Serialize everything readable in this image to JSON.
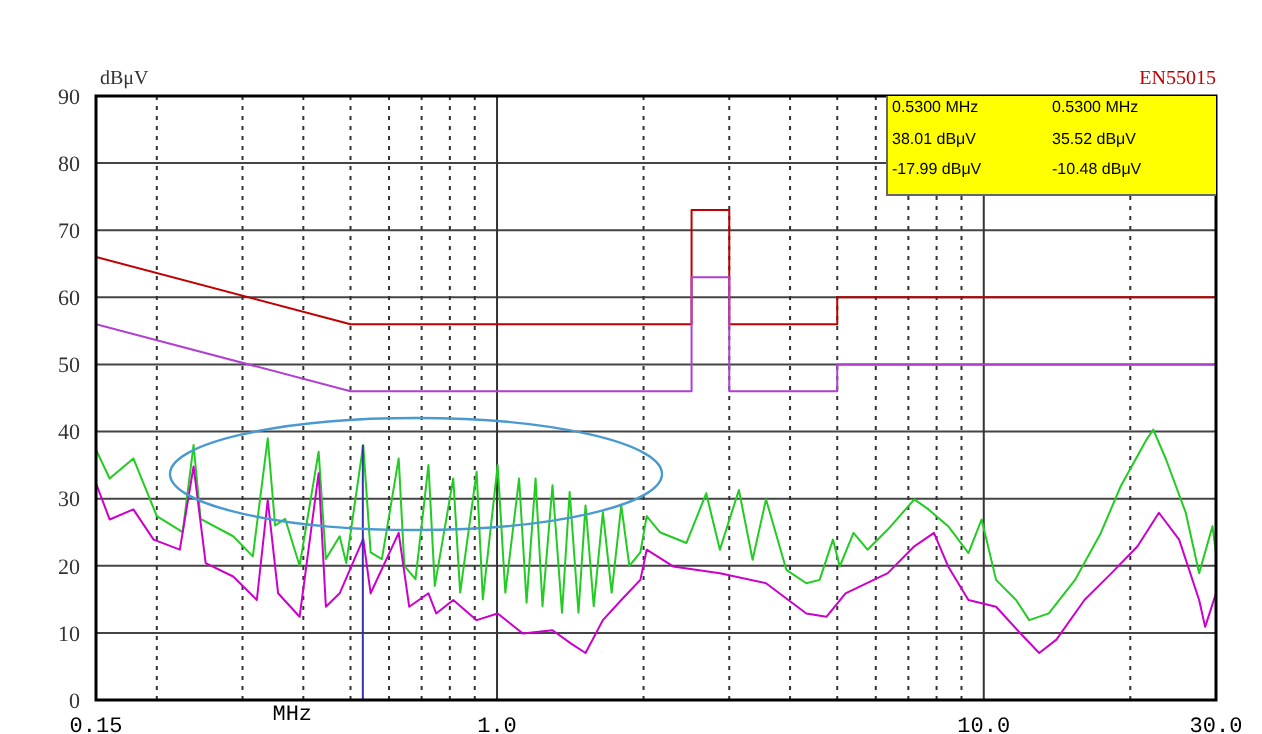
{
  "chart_data": {
    "type": "line",
    "ylabel": "dBμV",
    "xlabel": "MHz",
    "log": "x",
    "grid": true,
    "xlim": [
      0.15,
      30
    ],
    "xticks": [
      0.15,
      {
        "value": 0.2,
        "label": null
      },
      {
        "value": 0.3,
        "label": null
      },
      {
        "value": 0.4,
        "label": null
      },
      {
        "value": 0.5,
        "label": null
      },
      {
        "value": 0.6,
        "label": null
      },
      {
        "value": 0.7,
        "label": null
      },
      {
        "value": 0.8,
        "label": null
      },
      {
        "value": 0.9,
        "label": null
      },
      {
        "value": 1,
        "label": "1.0"
      },
      {
        "value": 2,
        "label": null
      },
      {
        "value": 3,
        "label": null
      },
      {
        "value": 4,
        "label": null
      },
      {
        "value": 5,
        "label": null
      },
      {
        "value": 6,
        "label": null
      },
      {
        "value": 7,
        "label": null
      },
      {
        "value": 8,
        "label": null
      },
      {
        "value": 9,
        "label": null
      },
      {
        "value": 10,
        "label": "10.0"
      },
      {
        "value": 20,
        "label": null
      },
      {
        "value": 30,
        "label": "30.0"
      }
    ],
    "ylim": [
      0,
      90
    ],
    "yticks": [
      0,
      10,
      20,
      30,
      40,
      50,
      60,
      70,
      80,
      90
    ],
    "annotations": [
      "EN55015",
      "0.5300 MHz",
      "38.01 dBμV",
      "-17.99 dBμV",
      "0.5300 MHz",
      "35.52 dBμV",
      "-10.48 dBμV"
    ],
    "series": [
      {
        "color": "#c00000",
        "x": [
          0.15,
          0.5,
          2.51,
          2.51,
          3,
          3,
          5,
          5,
          30
        ],
        "values": [
          66,
          56,
          56,
          73,
          73,
          56,
          56,
          60,
          60
        ]
      },
      {
        "color": "#b040d0",
        "x": [
          0.15,
          0.5,
          2.51,
          2.51,
          3,
          3,
          5,
          5,
          30
        ],
        "values": [
          56,
          46,
          46,
          63,
          63,
          46,
          46,
          50,
          50
        ]
      },
      {
        "color": "#22cc22",
        "x": [
          0.15,
          0.16,
          0.179,
          0.2,
          0.226,
          0.238,
          0.246,
          0.287,
          0.315,
          0.338,
          0.35,
          0.367,
          0.393,
          0.43,
          0.445,
          0.475,
          0.49,
          0.531,
          0.55,
          0.58,
          0.628,
          0.645,
          0.68,
          0.723,
          0.745,
          0.813,
          0.84,
          0.908,
          0.935,
          1.003,
          1.04,
          1.11,
          1.15,
          1.2,
          1.24,
          1.3,
          1.36,
          1.41,
          1.47,
          1.52,
          1.58,
          1.65,
          1.72,
          1.8,
          1.87,
          1.97,
          2.03,
          2.16,
          2.45,
          2.69,
          2.87,
          3.14,
          3.35,
          3.57,
          3.93,
          4.32,
          4.6,
          4.9,
          5.06,
          5.4,
          5.77,
          6.35,
          7.2,
          7.7,
          8.45,
          9.3,
          9.9,
          10.6,
          11.65,
          12.4,
          13.6,
          15.4,
          17.4,
          19.1,
          21.6,
          22.3,
          23.7,
          26,
          27.7,
          29.5,
          30
        ],
        "values": [
          37.3,
          33,
          36,
          27.4,
          25,
          38,
          27,
          24.4,
          21.4,
          39,
          26,
          27,
          20,
          37,
          21,
          24.4,
          20.4,
          38,
          22,
          21,
          36,
          20,
          18,
          35,
          17,
          33,
          16,
          34,
          15,
          35,
          16,
          33,
          14.5,
          33,
          14,
          32,
          13,
          31,
          13,
          29,
          14,
          28,
          16,
          29,
          20,
          22,
          27.4,
          25,
          23.4,
          30.8,
          22.4,
          31.3,
          20.9,
          29.9,
          19.4,
          17.4,
          17.9,
          23.9,
          19.9,
          24.9,
          22.4,
          25.4,
          29.9,
          28.4,
          25.9,
          21.9,
          26.9,
          17.9,
          14.9,
          11.9,
          12.9,
          17.9,
          24.9,
          31.8,
          38.8,
          40.3,
          35.8,
          27.9,
          18.9,
          25.9,
          21.9
        ]
      },
      {
        "color": "#cc00cc",
        "x": [
          0.15,
          0.16,
          0.179,
          0.197,
          0.223,
          0.238,
          0.252,
          0.287,
          0.321,
          0.338,
          0.355,
          0.393,
          0.43,
          0.445,
          0.475,
          0.531,
          0.55,
          0.628,
          0.66,
          0.723,
          0.75,
          0.813,
          0.908,
          1.003,
          1.13,
          1.3,
          1.42,
          1.52,
          1.65,
          1.8,
          1.97,
          2.03,
          2.3,
          2.87,
          3.57,
          4.32,
          4.75,
          5.2,
          6.35,
          7.2,
          7.9,
          8.45,
          9.3,
          10.6,
          11.9,
          13,
          14.1,
          16.1,
          18.3,
          20.7,
          22.9,
          25.2,
          27.7,
          28.5,
          30
        ],
        "values": [
          32.3,
          26.9,
          28.4,
          23.9,
          22.4,
          34.8,
          20.4,
          18.4,
          14.9,
          29.8,
          15.9,
          12.4,
          33.8,
          13.9,
          15.9,
          24,
          15.9,
          24.9,
          13.9,
          15.9,
          12.9,
          14.9,
          11.9,
          12.9,
          9.9,
          10.4,
          8.4,
          7,
          11.9,
          14.9,
          17.9,
          22.4,
          19.9,
          18.9,
          17.4,
          12.9,
          12.4,
          15.9,
          18.9,
          22.9,
          24.9,
          19.9,
          14.9,
          13.9,
          9.9,
          7,
          9,
          14.9,
          18.9,
          22.9,
          27.9,
          23.9,
          14.9,
          10.9,
          15.9
        ]
      },
      {
        "color": "#3333aa",
        "x": [
          0.53,
          0.53
        ],
        "values": [
          0,
          38
        ]
      }
    ]
  }
}
